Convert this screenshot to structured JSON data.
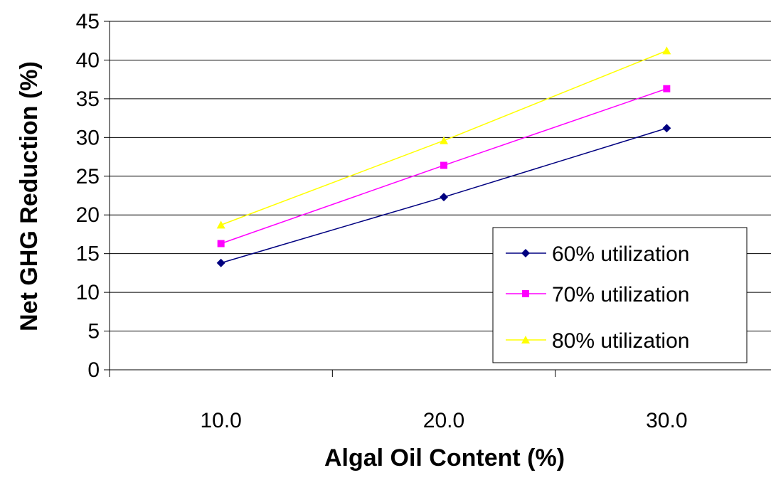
{
  "chart_data": {
    "type": "line",
    "categories": [
      "10.0",
      "20.0",
      "30.0"
    ],
    "series": [
      {
        "name": "60% utilization",
        "values": [
          13.8,
          22.3,
          31.2
        ],
        "color": "#000080",
        "marker": "diamond"
      },
      {
        "name": "70% utilization",
        "values": [
          16.3,
          26.4,
          36.3
        ],
        "color": "#ff00ff",
        "marker": "square"
      },
      {
        "name": "80% utilization",
        "values": [
          18.7,
          29.6,
          41.2
        ],
        "color": "#ffff00",
        "marker": "triangle"
      }
    ],
    "xlabel": "Algal Oil Content (%)",
    "ylabel": "Net GHG Reduction (%)",
    "ylim": [
      0,
      45
    ],
    "yticks": [
      "0",
      "5",
      "10",
      "15",
      "20",
      "25",
      "30",
      "35",
      "40",
      "45"
    ],
    "grid": "horizontal",
    "legend_position": "right"
  }
}
